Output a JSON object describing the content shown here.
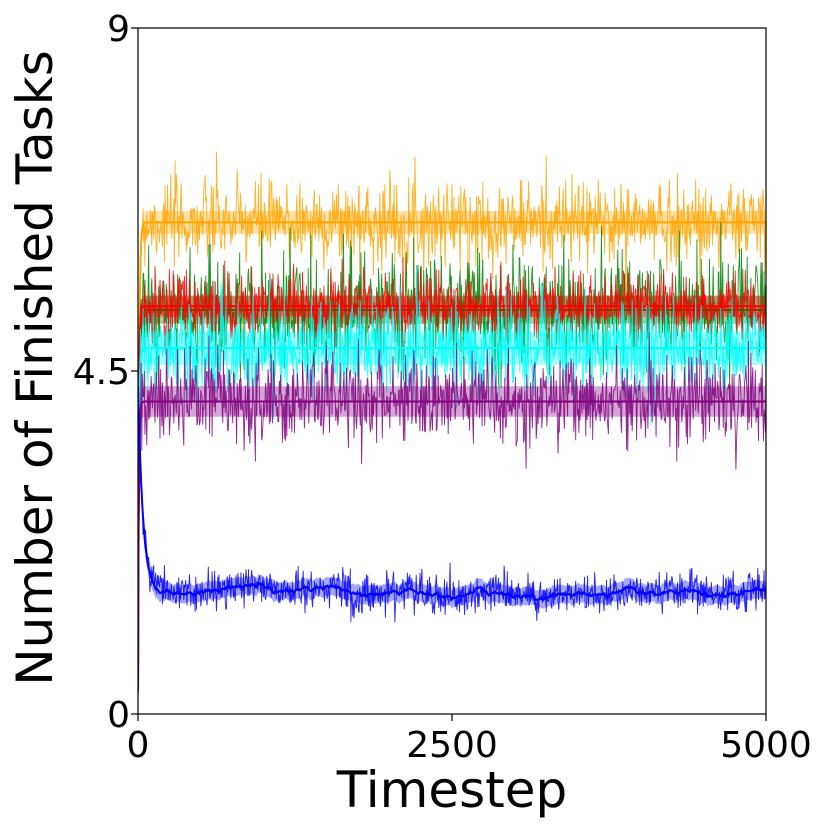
{
  "chart_data": {
    "type": "line",
    "title": "",
    "xlabel": "Timestep",
    "ylabel": "Number of Finished Tasks",
    "xlim": [
      0,
      5000
    ],
    "ylim": [
      0,
      9
    ],
    "xticks": [
      0,
      2500,
      5000
    ],
    "xtick_labels": [
      "0",
      "2500",
      "5000"
    ],
    "yticks": [
      0,
      4.5,
      9
    ],
    "ytick_labels": [
      "0",
      "4.5",
      "9"
    ],
    "grid": false,
    "legend": "none",
    "series": [
      {
        "color": "#ffa500",
        "start": 0.3,
        "mean": 6.45,
        "noise": 0.28,
        "band": 0.15,
        "transient_tau": 8,
        "spikes": [
          [
            2500,
            6.95
          ]
        ]
      },
      {
        "color": "#008000",
        "start": 0.3,
        "mean": 5.3,
        "noise": 0.38,
        "band": 0.18,
        "transient_tau": 8
      },
      {
        "color": "#ff0000",
        "start": 0.3,
        "mean": 5.35,
        "noise": 0.22,
        "band": 0.14,
        "transient_tau": 6
      },
      {
        "color": "#00ffff",
        "start": 0.3,
        "mean": 4.8,
        "noise": 0.32,
        "band": 0.22,
        "transient_tau": 6
      },
      {
        "color": "#800080",
        "start": 0.3,
        "mean": 4.1,
        "noise": 0.3,
        "band": 0.2,
        "transient_tau": 6
      },
      {
        "color": "#0000ff",
        "start": 4.3,
        "mean": 1.6,
        "noise": 0.13,
        "band": 0.12,
        "transient_tau": 40,
        "wander": 0.1
      }
    ]
  }
}
